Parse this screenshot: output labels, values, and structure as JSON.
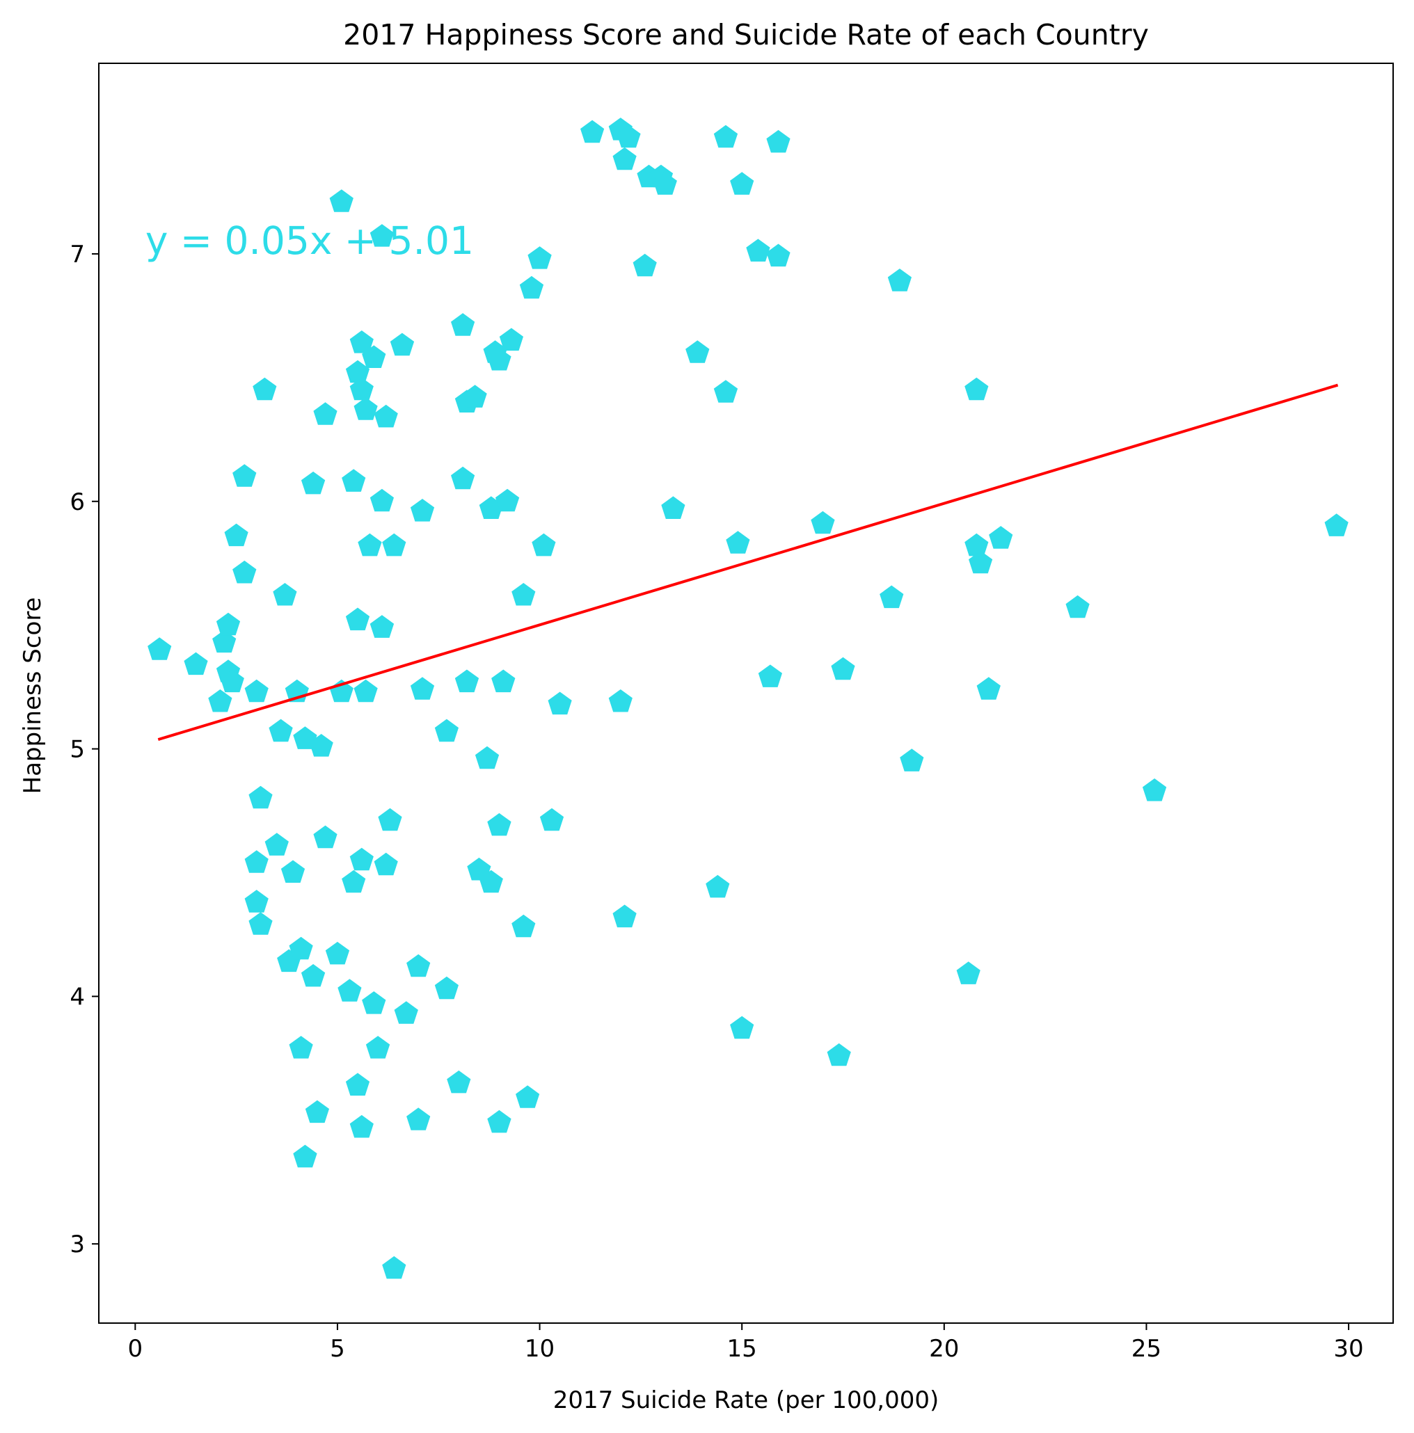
{
  "colors": {
    "points": "#2ddce8",
    "fit_line": "#ff0000",
    "equation": "#2ddce8",
    "axes": "#000000"
  },
  "chart_data": {
    "type": "scatter",
    "title": "2017 Happiness Score and Suicide Rate of each Country",
    "xlabel": "2017 Suicide Rate (per 100,000)",
    "ylabel": "Happiness Score",
    "xlim": [
      -0.9,
      31.1
    ],
    "ylim": [
      2.68,
      7.77
    ],
    "xticks": [
      0,
      5,
      10,
      15,
      20,
      25,
      30
    ],
    "yticks": [
      3,
      4,
      5,
      6,
      7
    ],
    "marker": "pentagon",
    "grid": false,
    "annotation": {
      "text": "y = 0.05x + 5.01",
      "x": 0.25,
      "y": 7.0
    },
    "fit_line": {
      "slope": 0.0491,
      "intercept": 5.01,
      "x_range": [
        0.6,
        29.7
      ]
    },
    "x": [
      0.6,
      1.5,
      2.1,
      2.2,
      2.3,
      2.3,
      2.4,
      2.5,
      2.7,
      2.7,
      3.0,
      3.0,
      3.0,
      3.1,
      3.1,
      3.2,
      3.5,
      3.6,
      3.7,
      3.8,
      3.9,
      4.0,
      4.1,
      4.1,
      4.2,
      4.2,
      4.4,
      4.4,
      4.5,
      4.6,
      4.7,
      4.7,
      5.0,
      5.1,
      5.1,
      5.3,
      5.4,
      5.4,
      5.5,
      5.5,
      5.5,
      5.6,
      5.6,
      5.6,
      5.6,
      5.7,
      5.7,
      5.8,
      5.9,
      5.9,
      6.0,
      6.1,
      6.1,
      6.1,
      6.1,
      6.2,
      6.2,
      6.3,
      6.4,
      6.4,
      6.6,
      6.7,
      7.0,
      7.0,
      7.1,
      7.1,
      7.7,
      7.7,
      8.0,
      8.1,
      8.1,
      8.2,
      8.2,
      8.4,
      8.5,
      8.7,
      8.8,
      8.8,
      8.9,
      9.0,
      9.0,
      9.0,
      9.1,
      9.2,
      9.3,
      9.6,
      9.6,
      9.7,
      9.8,
      10.0,
      10.1,
      10.3,
      10.5,
      11.3,
      12.0,
      12.0,
      12.1,
      12.1,
      12.2,
      12.6,
      12.7,
      13.0,
      13.1,
      13.3,
      13.9,
      14.4,
      14.6,
      14.6,
      14.9,
      15.0,
      15.0,
      15.4,
      15.7,
      15.9,
      15.9,
      17.0,
      17.4,
      17.5,
      18.7,
      18.9,
      19.2,
      20.6,
      20.8,
      20.8,
      20.9,
      21.1,
      21.4,
      23.3,
      25.2,
      29.7
    ],
    "y": [
      5.4,
      5.34,
      5.19,
      5.43,
      5.5,
      5.31,
      5.27,
      5.86,
      5.71,
      6.1,
      4.54,
      4.38,
      5.23,
      4.8,
      4.29,
      6.45,
      4.61,
      5.07,
      5.62,
      4.14,
      4.5,
      5.23,
      3.79,
      4.19,
      5.04,
      3.35,
      4.08,
      6.07,
      3.53,
      5.01,
      6.35,
      4.64,
      4.17,
      5.23,
      7.21,
      4.02,
      4.46,
      6.08,
      6.52,
      5.52,
      3.64,
      6.64,
      6.45,
      4.55,
      3.47,
      5.23,
      6.37,
      5.82,
      6.58,
      3.97,
      3.79,
      7.07,
      6.0,
      5.49,
      5.49,
      6.34,
      4.53,
      4.71,
      2.9,
      5.82,
      6.63,
      3.93,
      4.12,
      3.5,
      5.96,
      5.24,
      5.07,
      4.03,
      3.65,
      6.71,
      6.09,
      6.4,
      5.27,
      6.42,
      4.51,
      4.96,
      4.46,
      5.97,
      6.6,
      6.57,
      4.69,
      3.49,
      5.27,
      6.0,
      6.65,
      5.62,
      4.28,
      3.59,
      6.86,
      6.98,
      5.82,
      4.71,
      5.18,
      7.49,
      7.5,
      5.19,
      4.32,
      7.38,
      7.47,
      6.95,
      7.31,
      7.31,
      7.28,
      5.97,
      6.6,
      4.44,
      7.47,
      6.44,
      5.83,
      7.28,
      3.87,
      7.01,
      5.29,
      7.45,
      6.99,
      5.91,
      3.76,
      5.32,
      5.61,
      6.89,
      4.95,
      4.09,
      5.82,
      6.45,
      5.75,
      5.24,
      5.85,
      5.57,
      4.83,
      5.9
    ]
  }
}
